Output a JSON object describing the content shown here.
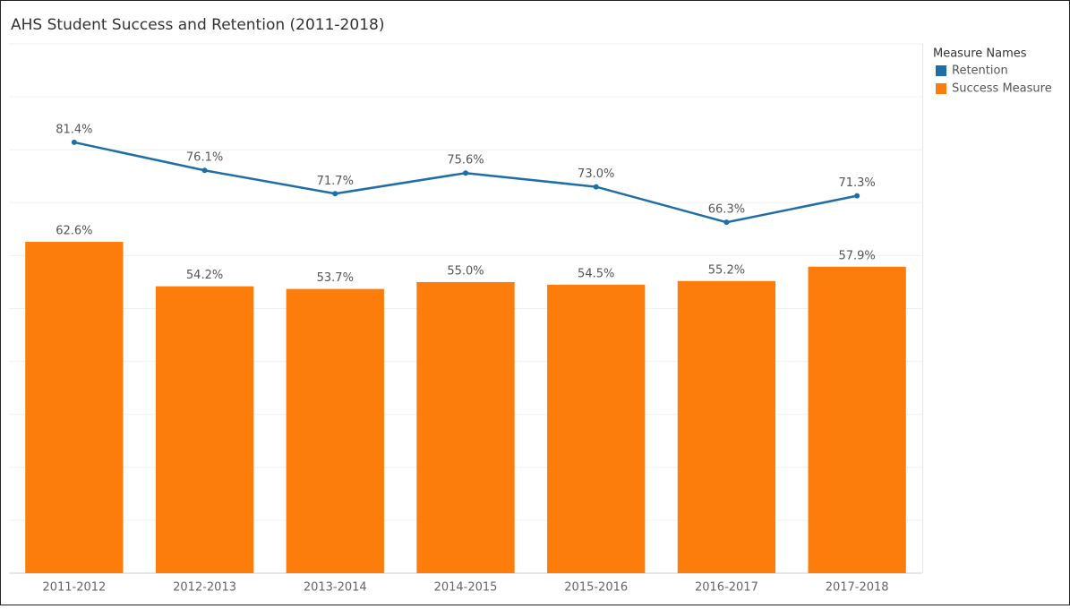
{
  "chart_data": {
    "type": "bar",
    "title": "AHS Student Success and Retention (2011-2018)",
    "legend_title": "Measure Names",
    "legend": "right",
    "grid": true,
    "categories": [
      "2011-2012",
      "2012-2013",
      "2013-2014",
      "2014-2015",
      "2015-2016",
      "2016-2017",
      "2017-2018"
    ],
    "ylim": [
      0,
      100
    ],
    "yticks": [
      0,
      10,
      20,
      30,
      40,
      50,
      60,
      70,
      80,
      90,
      100
    ],
    "series": [
      {
        "name": "Retention",
        "type": "line",
        "color": "#1f6ea8",
        "values": [
          81.4,
          76.1,
          71.7,
          75.6,
          73.0,
          66.3,
          71.3
        ],
        "value_labels": [
          "81.4%",
          "76.1%",
          "71.7%",
          "75.6%",
          "73.0%",
          "66.3%",
          "71.3%"
        ]
      },
      {
        "name": "Success Measure",
        "type": "bar",
        "color": "#fc7d0b",
        "values": [
          62.6,
          54.2,
          53.7,
          55.0,
          54.5,
          55.2,
          57.9
        ],
        "value_labels": [
          "62.6%",
          "54.2%",
          "53.7%",
          "55.0%",
          "54.5%",
          "55.2%",
          "57.9%"
        ]
      }
    ]
  }
}
